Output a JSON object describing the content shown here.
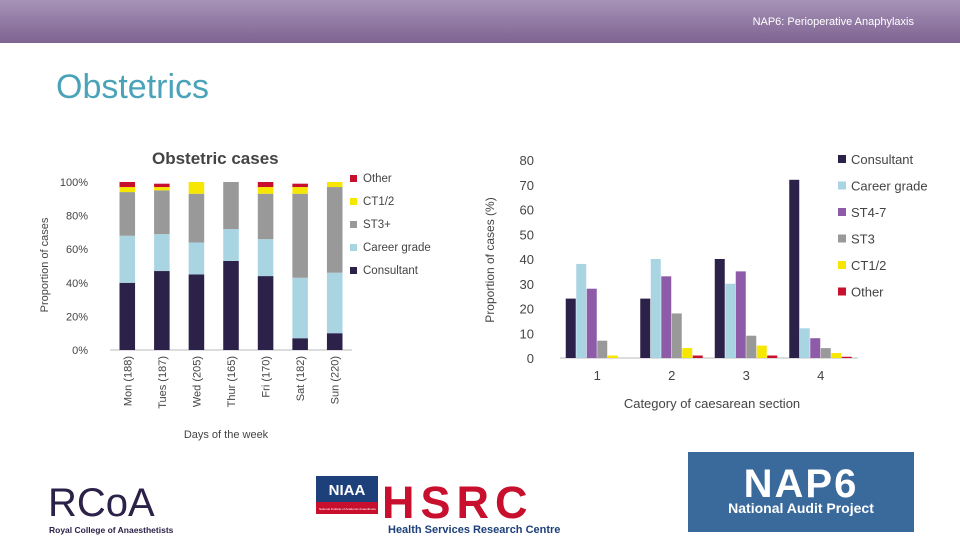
{
  "header": {
    "text": "NAP6: Perioperative Anaphylaxis"
  },
  "page": {
    "title": "Obstetrics"
  },
  "colors": {
    "consultant": "#2c2148",
    "career": "#a9d5e3",
    "st3": "#999999",
    "st47": "#8e5ba8",
    "ct12": "#f7e600",
    "other": "#c8102e"
  },
  "chart_data": [
    {
      "type": "bar",
      "stacked": true,
      "title": "Obstetric cases",
      "xlabel": "Days of the week",
      "ylabel": "Proportion of cases",
      "ylim": [
        0,
        100
      ],
      "yticks": [
        "0%",
        "20%",
        "40%",
        "60%",
        "80%",
        "100%"
      ],
      "categories": [
        "Mon (188)",
        "Tues (187)",
        "Wed (205)",
        "Thur (165)",
        "Fri (170)",
        "Sat (182)",
        "Sun (220)"
      ],
      "series": [
        {
          "name": "Consultant",
          "color": "#2c2148",
          "values": [
            40,
            47,
            45,
            53,
            44,
            7,
            10
          ]
        },
        {
          "name": "Career grade",
          "color": "#a9d5e3",
          "values": [
            28,
            22,
            19,
            19,
            22,
            36,
            36
          ]
        },
        {
          "name": "ST3+",
          "color": "#999999",
          "values": [
            26,
            26,
            29,
            28,
            27,
            50,
            51
          ]
        },
        {
          "name": "CT1/2",
          "color": "#f7e600",
          "values": [
            3,
            2,
            7,
            0,
            4,
            4,
            3
          ]
        },
        {
          "name": "Other",
          "color": "#c8102e",
          "values": [
            3,
            2,
            0,
            0,
            3,
            2,
            0
          ]
        }
      ],
      "legend": {
        "position": "right",
        "order": [
          "Other",
          "CT1/2",
          "ST3+",
          "Career grade",
          "Consultant"
        ]
      }
    },
    {
      "type": "bar",
      "grouped": true,
      "xlabel": "Category of caesarean section",
      "ylabel": "Proportion of cases (%)",
      "ylim": [
        0,
        80
      ],
      "yticks": [
        "0",
        "10",
        "20",
        "30",
        "40",
        "50",
        "60",
        "70",
        "80"
      ],
      "categories": [
        "1",
        "2",
        "3",
        "4"
      ],
      "series": [
        {
          "name": "Consultant",
          "color": "#2c2148",
          "values": [
            24,
            24,
            40,
            72
          ]
        },
        {
          "name": "Career grade",
          "color": "#a9d5e3",
          "values": [
            38,
            40,
            30,
            12
          ]
        },
        {
          "name": "ST4-7",
          "color": "#8e5ba8",
          "values": [
            28,
            33,
            35,
            8
          ]
        },
        {
          "name": "ST3",
          "color": "#999999",
          "values": [
            7,
            18,
            9,
            4
          ]
        },
        {
          "name": "CT1/2",
          "color": "#f7e600",
          "values": [
            1,
            4,
            5,
            2
          ]
        },
        {
          "name": "Other",
          "color": "#c8102e",
          "values": [
            0,
            1,
            1,
            0.5
          ]
        }
      ],
      "legend": {
        "position": "right"
      }
    }
  ],
  "logos": {
    "rcoa": {
      "mark": "RCoA",
      "caption": "Royal College of Anaesthetists"
    },
    "niaa": {
      "badge": "NIAA",
      "sub": "National Institute of Academic Anaesthesia"
    },
    "hsrc": {
      "mark": "HSRC",
      "caption": "Health Services Research Centre"
    },
    "nap6": {
      "mark": "NAP6",
      "caption": "National Audit Project"
    }
  }
}
